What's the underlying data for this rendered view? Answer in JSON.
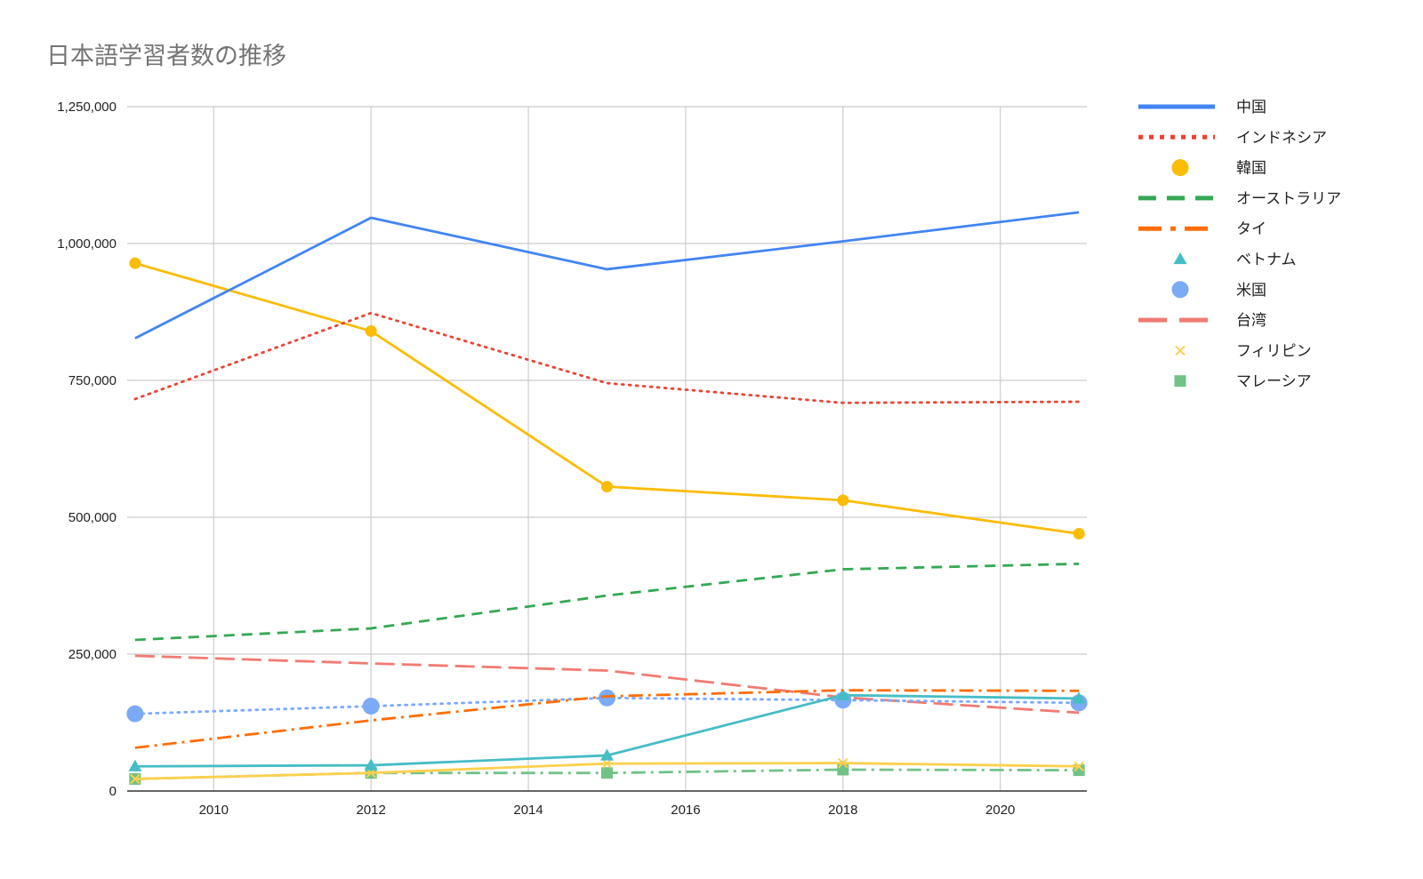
{
  "chart_data": {
    "type": "line",
    "title": "日本語学習者数の推移",
    "xlabel": "",
    "ylabel": "",
    "x": [
      2009,
      2012,
      2015,
      2018,
      2021
    ],
    "xlim": [
      2009,
      2021
    ],
    "ylim": [
      0,
      1250000
    ],
    "x_ticks": [
      2010,
      2012,
      2014,
      2016,
      2018,
      2020
    ],
    "y_ticks": [
      0,
      250000,
      500000,
      750000,
      1000000,
      1250000
    ],
    "x_tick_labels": [
      "2010",
      "2012",
      "2014",
      "2016",
      "2018",
      "2020"
    ],
    "y_tick_labels": [
      "0",
      "250,000",
      "500,000",
      "750,000",
      "1,000,000",
      "1,250,000"
    ],
    "grid": true,
    "legend_position": "right",
    "series": [
      {
        "name": "中国",
        "values": [
          827000,
          1047000,
          953000,
          1004000,
          1057000
        ],
        "color": "#4285f4",
        "line": "solid",
        "marker": "none"
      },
      {
        "name": "インドネシア",
        "values": [
          716000,
          873000,
          745000,
          709000,
          711000
        ],
        "color": "#ea4335",
        "line": "dotted",
        "marker": "none"
      },
      {
        "name": "韓国",
        "values": [
          964000,
          840000,
          556000,
          531000,
          470000
        ],
        "color": "#fbbc04",
        "line": "solid",
        "marker": "circle"
      },
      {
        "name": "オーストラリア",
        "values": [
          276000,
          297000,
          357000,
          405000,
          415000
        ],
        "color": "#34a853",
        "line": "dashed",
        "marker": "none"
      },
      {
        "name": "タイ",
        "values": [
          79000,
          129000,
          173000,
          184000,
          183000
        ],
        "color": "#ff6d01",
        "line": "dashdot",
        "marker": "none"
      },
      {
        "name": "ベトナム",
        "values": [
          45000,
          47000,
          65000,
          175000,
          169000
        ],
        "color": "#46bdc6",
        "line": "solid",
        "marker": "triangle"
      },
      {
        "name": "米国",
        "values": [
          141000,
          155000,
          170000,
          166000,
          161000
        ],
        "color": "#7baaf7",
        "line": "dotted",
        "marker": "circle-large"
      },
      {
        "name": "台湾",
        "values": [
          247000,
          233000,
          220000,
          171000,
          143000
        ],
        "color": "#f07b72",
        "line": "longdash",
        "marker": "none"
      },
      {
        "name": "フィリピン",
        "values": [
          22000,
          33000,
          50000,
          51000,
          45000
        ],
        "color": "#fcd04f",
        "line": "solid",
        "marker": "x"
      },
      {
        "name": "マレーシア",
        "values": [
          22000,
          33000,
          33000,
          39000,
          38000
        ],
        "color": "#71c287",
        "line": "dashdot",
        "marker": "square"
      }
    ]
  }
}
